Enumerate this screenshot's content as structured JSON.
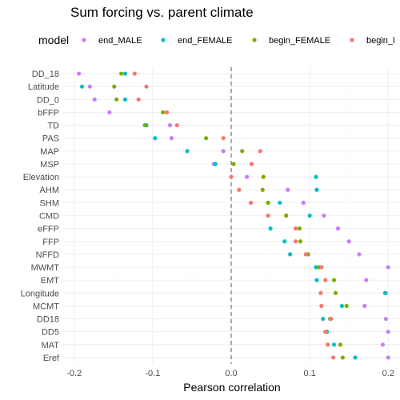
{
  "chart_data": {
    "type": "scatter",
    "title": "Sum forcing vs. parent climate",
    "xlabel": "Pearson correlation",
    "ylabel": "",
    "xlim": [
      -0.215,
      0.215
    ],
    "x_ticks": [
      -0.2,
      -0.1,
      0.0,
      0.1,
      0.2
    ],
    "x_tick_labels": [
      "-0.2",
      "-0.1",
      "0.0",
      "0.1",
      "0.2"
    ],
    "grid": true,
    "reference_line_x": 0,
    "legend": {
      "title": "model",
      "placement": "top",
      "entries": [
        "end_MALE",
        "end_FEMALE",
        "begin_FEMALE",
        "begin_MALE"
      ],
      "visible_labels": [
        "end_MALE",
        "end_FEMALE",
        "begin_FEMALE",
        "begin_l"
      ]
    },
    "colors": {
      "end_MALE": "#C77CFF",
      "end_FEMALE": "#00BFC4",
      "begin_FEMALE": "#7CAE00",
      "begin_MALE": "#F8766D"
    },
    "categories": [
      "DD_18",
      "Latitude",
      "DD_0",
      "bFFP",
      "TD",
      "PAS",
      "MAP",
      "MSP",
      "Elevation",
      "AHM",
      "SHM",
      "CMD",
      "eFFP",
      "FFP",
      "NFFD",
      "MWMT",
      "EMT",
      "Longitude",
      "MCMT",
      "DD18",
      "DD5",
      "MAT",
      "Eref"
    ],
    "series": [
      {
        "name": "end_MALE",
        "values": [
          -0.194,
          -0.18,
          -0.174,
          -0.155,
          -0.078,
          -0.076,
          -0.01,
          -0.022,
          0.02,
          0.072,
          0.092,
          0.118,
          0.136,
          0.15,
          0.163,
          0.2,
          0.172,
          0.197,
          0.17,
          0.197,
          0.2,
          0.193,
          0.2
        ]
      },
      {
        "name": "end_FEMALE",
        "values": [
          -0.135,
          -0.19,
          -0.135,
          -0.082,
          -0.108,
          -0.097,
          -0.056,
          -0.02,
          0.108,
          0.109,
          0.062,
          0.1,
          0.05,
          0.068,
          0.075,
          0.108,
          0.109,
          0.196,
          0.141,
          0.117,
          0.122,
          0.131,
          0.158
        ]
      },
      {
        "name": "begin_FEMALE",
        "values": [
          -0.14,
          -0.149,
          -0.146,
          -0.087,
          -0.11,
          -0.032,
          0.014,
          0.003,
          0.041,
          0.04,
          0.047,
          0.07,
          0.087,
          0.088,
          0.098,
          0.112,
          0.131,
          0.133,
          0.147,
          0.126,
          0.121,
          0.139,
          0.142
        ]
      },
      {
        "name": "begin_MALE",
        "values": [
          -0.123,
          -0.108,
          -0.118,
          -0.082,
          -0.069,
          -0.01,
          0.037,
          0.026,
          0.0,
          0.01,
          0.025,
          0.047,
          0.082,
          0.082,
          0.095,
          0.115,
          0.12,
          0.114,
          0.115,
          0.127,
          0.12,
          0.123,
          0.13
        ]
      }
    ]
  }
}
